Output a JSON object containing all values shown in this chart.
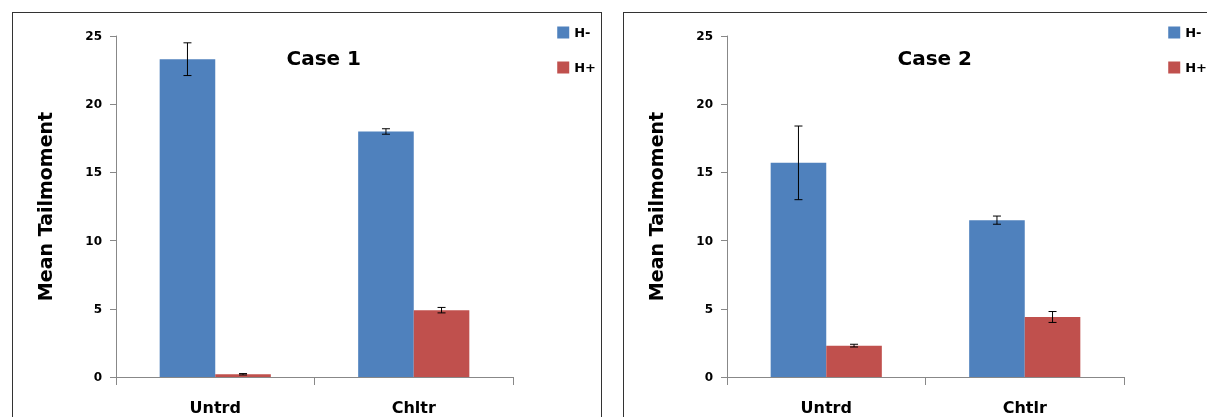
{
  "chart_data": [
    {
      "type": "bar",
      "title": "Case 1",
      "ylabel": "Mean Tailmoment",
      "categories": [
        "Untrd",
        "Chltr"
      ],
      "series": [
        {
          "name": "H-",
          "color": "#4f81bd",
          "values": [
            23.3,
            18.0
          ],
          "errors": [
            1.2,
            0.2
          ]
        },
        {
          "name": "H+",
          "color": "#c0504d",
          "values": [
            0.2,
            4.9
          ],
          "errors": [
            0.05,
            0.2
          ]
        }
      ],
      "ylim": [
        0,
        25
      ],
      "yticks": [
        0,
        5,
        10,
        15,
        20,
        25
      ],
      "grid": false,
      "legend": "top right"
    },
    {
      "type": "bar",
      "title": "Case 2",
      "ylabel": "Mean Tailmoment",
      "categories": [
        "Untrd",
        "Chtlr"
      ],
      "series": [
        {
          "name": "H-",
          "color": "#4f81bd",
          "values": [
            15.7,
            11.5
          ],
          "errors": [
            2.7,
            0.3
          ]
        },
        {
          "name": "H+",
          "color": "#c0504d",
          "values": [
            2.3,
            4.4
          ],
          "errors": [
            0.1,
            0.4
          ]
        }
      ],
      "ylim": [
        0,
        25
      ],
      "yticks": [
        0,
        5,
        10,
        15,
        20,
        25
      ],
      "grid": false,
      "legend": "top right"
    }
  ]
}
